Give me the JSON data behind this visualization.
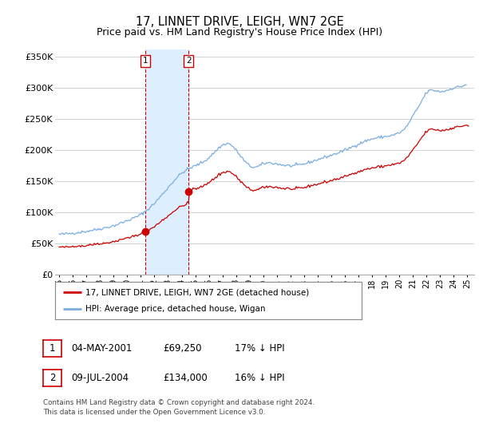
{
  "title": "17, LINNET DRIVE, LEIGH, WN7 2GE",
  "subtitle": "Price paid vs. HM Land Registry's House Price Index (HPI)",
  "ylabel_ticks": [
    "£0",
    "£50K",
    "£100K",
    "£150K",
    "£200K",
    "£250K",
    "£300K",
    "£350K"
  ],
  "ytick_vals": [
    0,
    50000,
    100000,
    150000,
    200000,
    250000,
    300000,
    350000
  ],
  "ylim": [
    0,
    362000
  ],
  "xlim_start": 1994.7,
  "xlim_end": 2025.5,
  "hpi_color": "#7aade0",
  "price_color": "#cc0000",
  "shade_color": "#ddeeff",
  "marker1_year": 2001.35,
  "marker1_price": 69250,
  "marker2_year": 2004.52,
  "marker2_price": 134000,
  "marker1_label": "1",
  "marker2_label": "2",
  "vline_color": "#cc0000",
  "legend_line1": "17, LINNET DRIVE, LEIGH, WN7 2GE (detached house)",
  "legend_line2": "HPI: Average price, detached house, Wigan",
  "table_row1": [
    "1",
    "04-MAY-2001",
    "£69,250",
    "17% ↓ HPI"
  ],
  "table_row2": [
    "2",
    "09-JUL-2004",
    "£134,000",
    "16% ↓ HPI"
  ],
  "footer": "Contains HM Land Registry data © Crown copyright and database right 2024.\nThis data is licensed under the Open Government Licence v3.0.",
  "background_color": "#ffffff",
  "grid_color": "#cccccc",
  "title_fontsize": 10.5,
  "subtitle_fontsize": 9,
  "axis_fontsize": 8
}
